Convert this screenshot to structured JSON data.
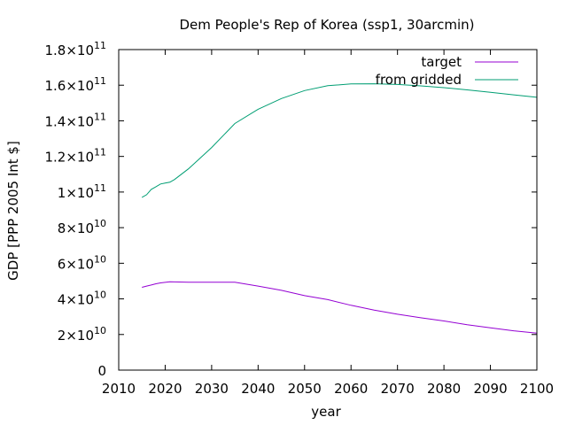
{
  "chart_data": {
    "type": "line",
    "title": "Dem People's Rep of Korea (ssp1, 30arcmin)",
    "xlabel": "year",
    "ylabel": "GDP [PPP 2005 Int $]",
    "xlim": [
      2010,
      2100
    ],
    "ylim": [
      0,
      180000000000
    ],
    "xticks": [
      2010,
      2020,
      2030,
      2040,
      2050,
      2060,
      2070,
      2080,
      2090,
      2100
    ],
    "yticks": [
      {
        "value": 0,
        "mant": "0",
        "exp": ""
      },
      {
        "value": 20000000000,
        "mant": "2×10",
        "exp": "10"
      },
      {
        "value": 40000000000,
        "mant": "4×10",
        "exp": "10"
      },
      {
        "value": 60000000000,
        "mant": "6×10",
        "exp": "10"
      },
      {
        "value": 80000000000,
        "mant": "8×10",
        "exp": "10"
      },
      {
        "value": 100000000000,
        "mant": "1×10",
        "exp": "11"
      },
      {
        "value": 120000000000,
        "mant": "1.2×10",
        "exp": "11"
      },
      {
        "value": 140000000000,
        "mant": "1.4×10",
        "exp": "11"
      },
      {
        "value": 160000000000,
        "mant": "1.6×10",
        "exp": "11"
      },
      {
        "value": 180000000000,
        "mant": "1.8×10",
        "exp": "11"
      }
    ],
    "grid": false,
    "legend_position": "top-right",
    "series": [
      {
        "name": "target",
        "color": "#9400d3",
        "x": [
          2015,
          2016,
          2017,
          2018,
          2019,
          2020,
          2021,
          2022,
          2025,
          2030,
          2035,
          2040,
          2045,
          2050,
          2055,
          2060,
          2065,
          2070,
          2075,
          2080,
          2085,
          2090,
          2095,
          2100
        ],
        "y": [
          46500000000,
          47200000000,
          47800000000,
          48500000000,
          49000000000,
          49300000000,
          49600000000,
          49500000000,
          49400000000,
          49400000000,
          49400000000,
          47200000000,
          44800000000,
          41800000000,
          39600000000,
          36400000000,
          33700000000,
          31400000000,
          29400000000,
          27600000000,
          25500000000,
          23700000000,
          22100000000,
          20800000000
        ]
      },
      {
        "name": "from gridded",
        "color": "#009e73",
        "x": [
          2015,
          2016,
          2017,
          2018,
          2019,
          2020,
          2021,
          2022,
          2025,
          2030,
          2035,
          2040,
          2045,
          2050,
          2055,
          2060,
          2065,
          2070,
          2075,
          2080,
          2085,
          2090,
          2095,
          2100
        ],
        "y": [
          97000000000,
          98500000000,
          101500000000,
          103000000000,
          104500000000,
          105000000000,
          105500000000,
          107000000000,
          113000000000,
          125000000000,
          138500000000,
          146500000000,
          152500000000,
          157000000000,
          159700000000,
          160700000000,
          160800000000,
          160400000000,
          159600000000,
          158600000000,
          157400000000,
          156000000000,
          154600000000,
          153200000000
        ]
      }
    ]
  }
}
